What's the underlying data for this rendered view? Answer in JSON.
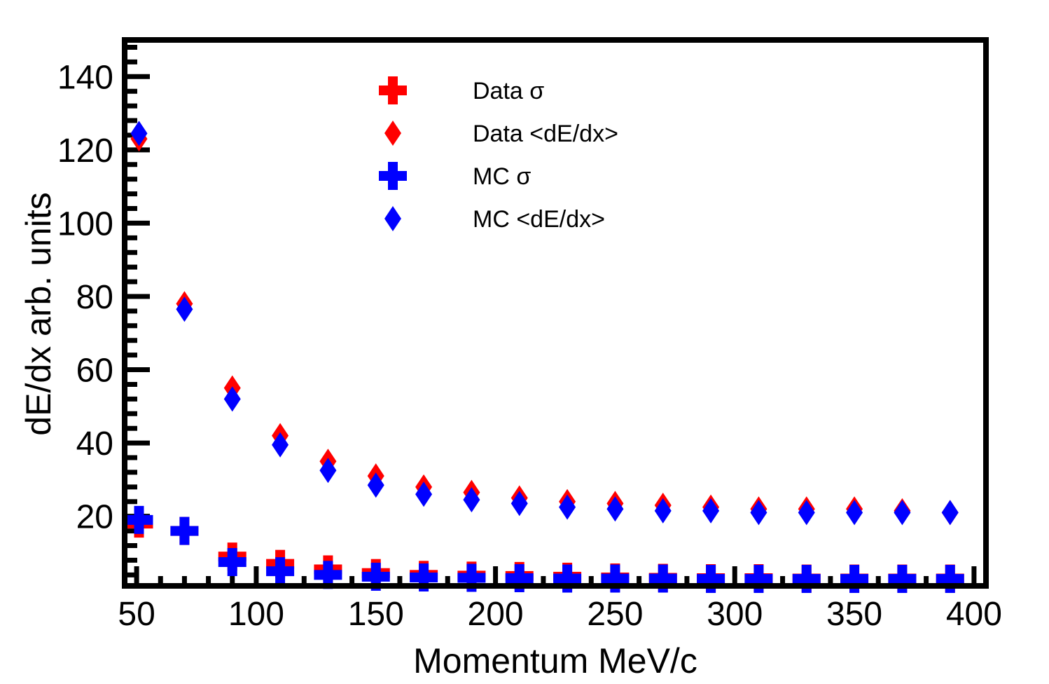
{
  "chart_data": {
    "type": "scatter",
    "title": "",
    "xlabel": "Momentum MeV/c",
    "ylabel": "dE/dx arb. units",
    "xlim": [
      45,
      405
    ],
    "ylim": [
      1,
      150
    ],
    "x_ticks": [
      50,
      100,
      150,
      200,
      250,
      300,
      350,
      400
    ],
    "y_ticks": [
      20,
      40,
      60,
      80,
      100,
      120,
      140
    ],
    "grid": false,
    "legend_position": "top-center",
    "x": [
      51,
      70,
      90,
      110,
      130,
      150,
      170,
      190,
      210,
      230,
      250,
      270,
      290,
      310,
      330,
      350,
      370,
      390
    ],
    "series": [
      {
        "name": "Data σ",
        "marker": "cross",
        "color": "#ff0000",
        "values": [
          18,
          16,
          9,
          7,
          5.5,
          4.5,
          4,
          3.8,
          3.7,
          3.5,
          3.3,
          3.2,
          3.1,
          3.1,
          3,
          3,
          3,
          3
        ]
      },
      {
        "name": "Data <dE/dx>",
        "marker": "diamond",
        "color": "#ff0000",
        "values": [
          123,
          78,
          55,
          42,
          35,
          31,
          28,
          26.5,
          25,
          24,
          23.5,
          23,
          22.5,
          22,
          22,
          22,
          21.5,
          21
        ]
      },
      {
        "name": "MC σ",
        "marker": "cross",
        "color": "#0000ff",
        "values": [
          19,
          16,
          7.5,
          5,
          4,
          3.5,
          3.3,
          3.2,
          3.1,
          3,
          3,
          3,
          2.9,
          2.9,
          2.9,
          2.9,
          2.9,
          2.9
        ]
      },
      {
        "name": "MC <dE/dx>",
        "marker": "diamond",
        "color": "#0000ff",
        "values": [
          124.5,
          76.5,
          52,
          39.5,
          32.5,
          28.5,
          26,
          24.5,
          23.5,
          22.5,
          22,
          21.5,
          21.5,
          21,
          21,
          21,
          21,
          21
        ]
      }
    ]
  }
}
